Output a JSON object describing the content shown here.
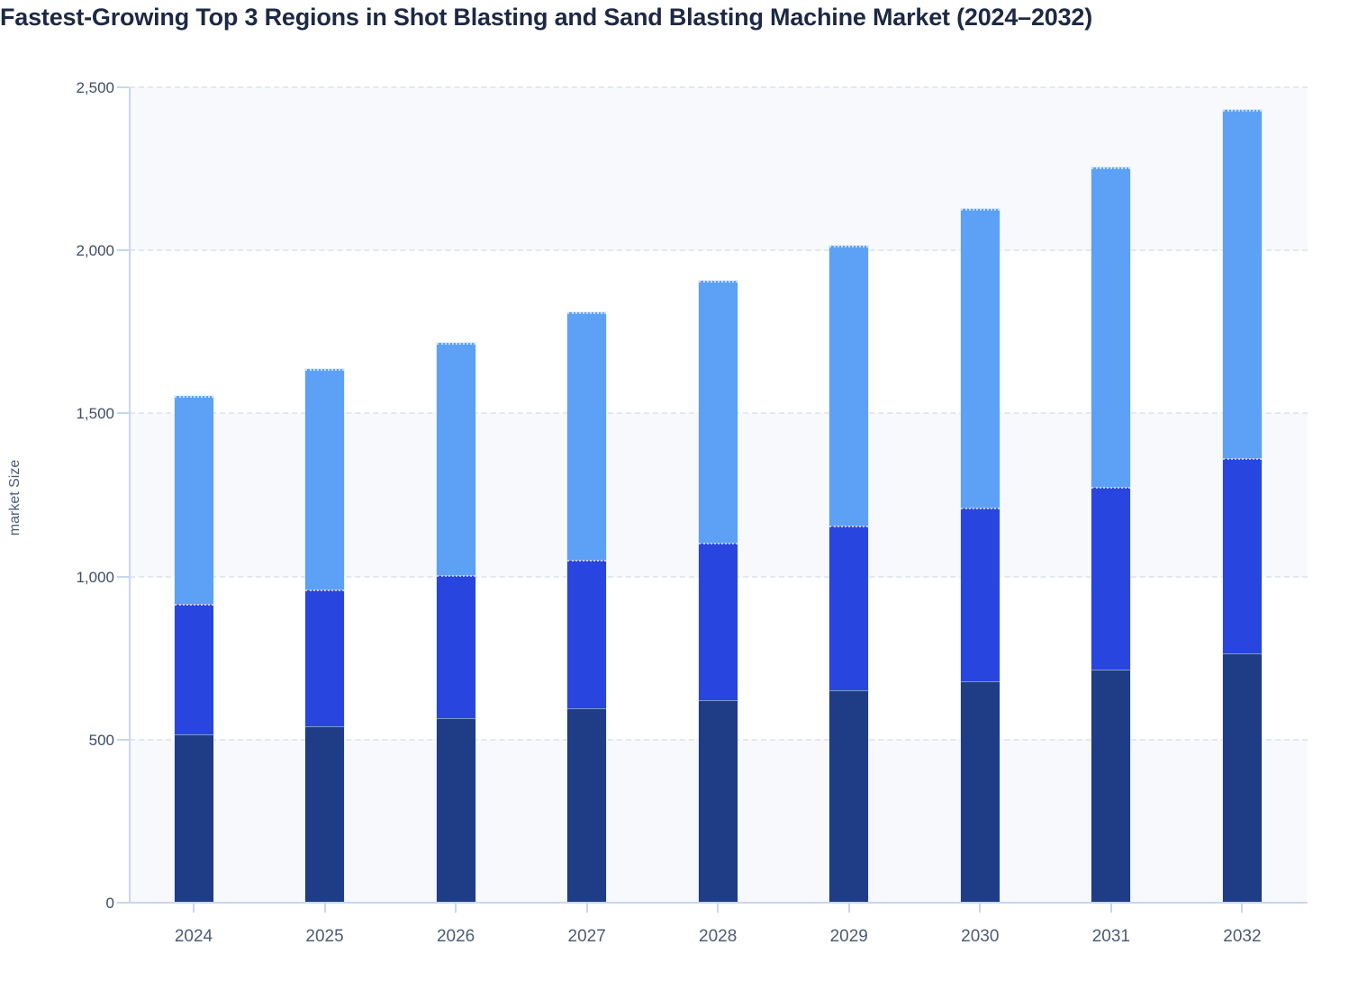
{
  "title": "Fastest-Growing Top 3 Regions in Shot Blasting and Sand Blasting Machine Market (2024–2032)",
  "y_axis": {
    "label": "market Size",
    "tick_labels": [
      "0",
      "500",
      "1,000",
      "1,500",
      "2,000",
      "2,500"
    ],
    "min": 0,
    "max": 2500,
    "step": 500
  },
  "x_axis": {
    "tick_labels": [
      "2024",
      "2025",
      "2026",
      "2027",
      "2028",
      "2029",
      "2030",
      "2031",
      "2032"
    ]
  },
  "chart_data": {
    "type": "bar",
    "stacked": true,
    "title": "Fastest-Growing Top 3 Regions in Shot Blasting and Sand Blasting Machine Market (2024–2032)",
    "xlabel": "",
    "ylabel": "market Size",
    "ylim": [
      0,
      2500
    ],
    "grid": true,
    "legend_position": "none",
    "categories": [
      "2024",
      "2025",
      "2026",
      "2027",
      "2028",
      "2029",
      "2030",
      "2031",
      "2032"
    ],
    "series": [
      {
        "name": "bottom segment (dark navy)",
        "color": "#1f3c87",
        "values": [
          515,
          540,
          565,
          595,
          620,
          650,
          680,
          715,
          765
        ]
      },
      {
        "name": "middle segment (medium blue)",
        "color": "#2846df",
        "values": [
          400,
          420,
          440,
          455,
          485,
          505,
          530,
          560,
          598
        ]
      },
      {
        "name": "top segment (light blue)",
        "color": "#5da1f6",
        "values": [
          638,
          675,
          712,
          761,
          801,
          860,
          917,
          980,
          1067
        ]
      }
    ],
    "stack_totals": [
      1553,
      1635,
      1717,
      1811,
      1906,
      2015,
      2127,
      2255,
      2430
    ]
  },
  "colors": {
    "background": "#ffffff",
    "band_fill": "#f7f9fc",
    "gridline": "#e3e8f0",
    "axis_line": "#c9d6f1",
    "title_text": "#1d2944",
    "y_tick_text": "#3e4c66",
    "x_tick_text": "#4e5b73",
    "y_axis_title_text": "#4c5b7a"
  }
}
